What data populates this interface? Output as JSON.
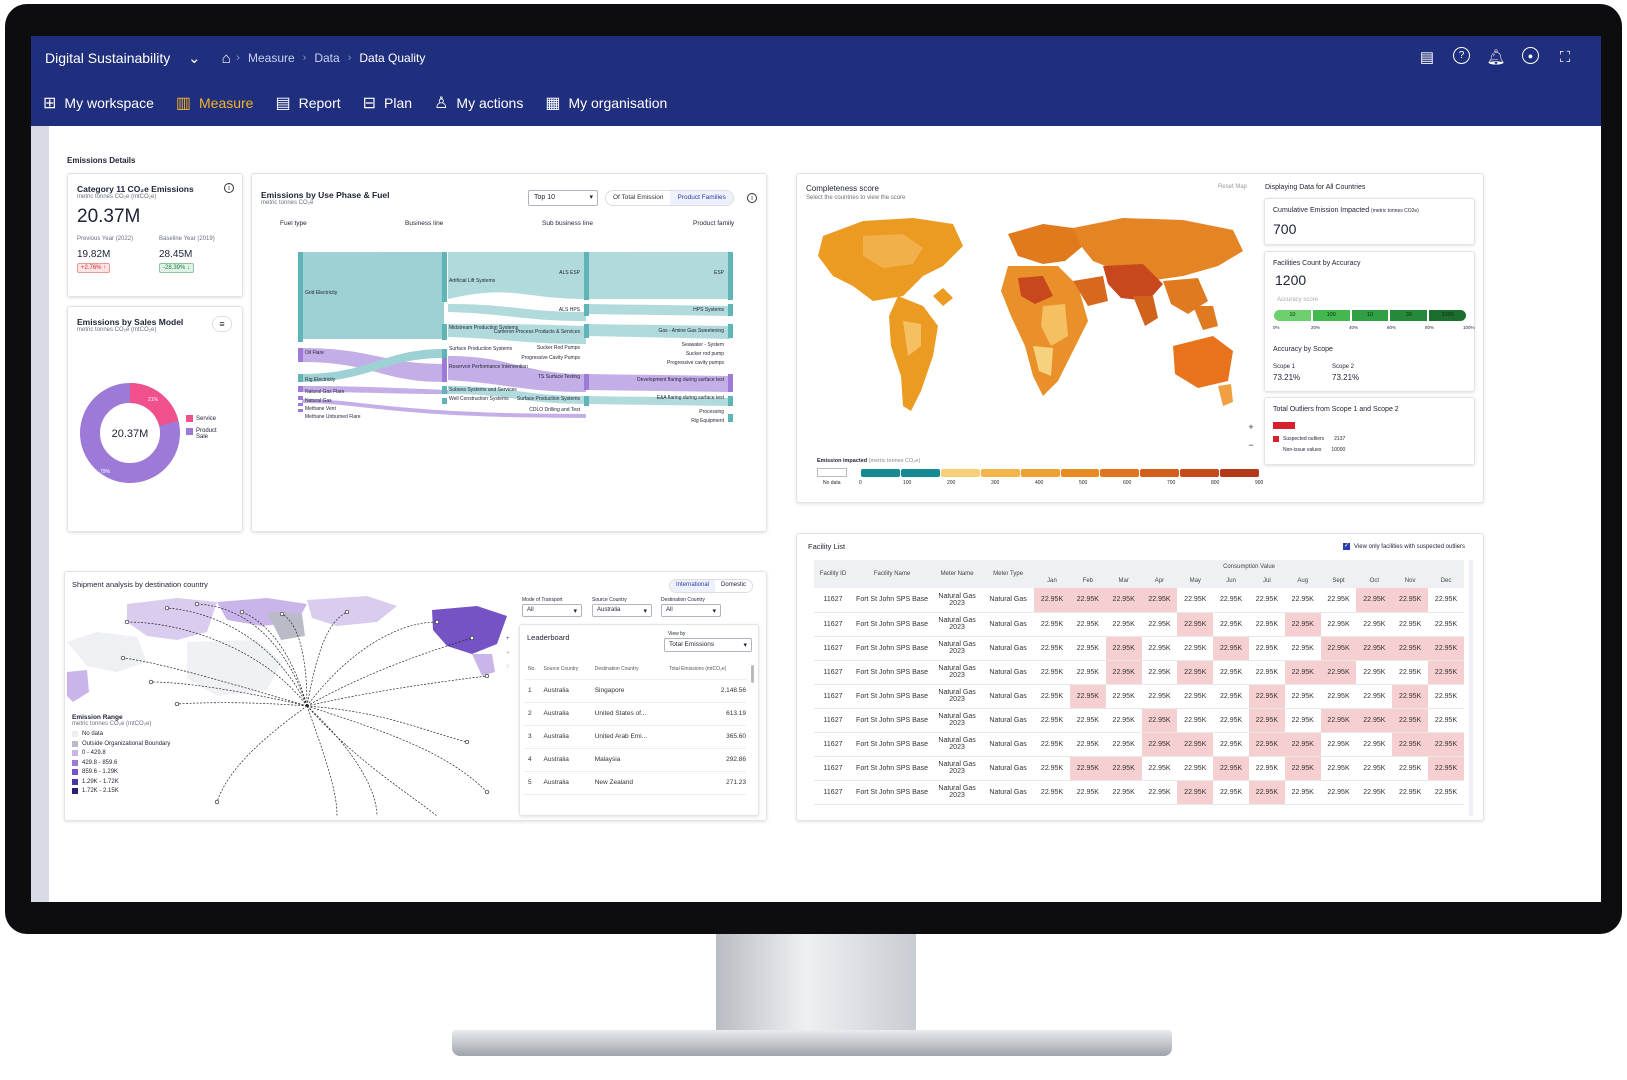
{
  "header": {
    "brand": "Digital Sustainability",
    "breadcrumbs": [
      "Measure",
      "Data",
      "Data Quality"
    ],
    "nav": [
      {
        "label": "My workspace",
        "icon": "grid-icon"
      },
      {
        "label": "Measure",
        "icon": "bar-chart-icon",
        "active": true
      },
      {
        "label": "Report",
        "icon": "document-icon"
      },
      {
        "label": "Plan",
        "icon": "plan-icon"
      },
      {
        "label": "My actions",
        "icon": "user-icon"
      },
      {
        "label": "My organisation",
        "icon": "building-icon"
      }
    ]
  },
  "section_title": "Emissions Details",
  "category11": {
    "title": "Category 11 CO₂e Emissions",
    "unit": "metric tonnes CO₂e (mtCO₂e)",
    "value": "20.37M",
    "prev_label": "Previous Year (2022)",
    "prev_value": "19.82M",
    "prev_change": "+2.76% ↑",
    "base_label": "Baseline Year (2019)",
    "base_value": "28.45M",
    "base_change": "-28.39% ↓"
  },
  "sales_model": {
    "title": "Emissions by Sales Model",
    "unit": "metric tonnes CO₂e (mtCO₂e)",
    "center": "20.37M",
    "service_pct": "21%",
    "product_pct": "79%",
    "legend": [
      "Service",
      "Product Sale"
    ],
    "colors": {
      "service": "#f0508c",
      "product": "#9d7ad8"
    }
  },
  "sankey": {
    "title": "Emissions by Use Phase & Fuel",
    "unit": "metric tonnes CO₂e",
    "select": "Top 10",
    "toggle": [
      "Of Total Emission",
      "Product Families"
    ],
    "columns": [
      "Fuel type",
      "Business line",
      "Sub business line",
      "Product family"
    ],
    "fuel": [
      "Grid Electricity",
      "Oil Flare",
      "Rig Electricity",
      "Natural Gas Flare",
      "Natural Gas",
      "Methane Vent",
      "Methane Unburned Flare"
    ],
    "business": [
      "Artificial Lift Systems",
      "Midstream Production Systems",
      "Surface Production Systems",
      "Reservoir Performance Intervention",
      "Subsea Systems and Services",
      "Well Construction Systems"
    ],
    "subbusiness": [
      "ALS ESP",
      "ALS HPS",
      "Cameron Process Products & Services",
      "Sucker Rod Pumps",
      "Progressive Cavity Pumps",
      "TS Surface Testing",
      "Surface Production Systems",
      "CDLO Drilling and Test"
    ],
    "product": [
      "ESP",
      "HPS Systems",
      "Gas - Amine Gas Sweetening",
      "Seawater - System",
      "Sucker rod pump",
      "Progressive cavity pumps",
      "Development flaring during surface test",
      "E&A flaring during surface test",
      "Processing",
      "Rig Equipment"
    ]
  },
  "map": {
    "title": "Completeness score",
    "subtitle": "Select the countries to view the score",
    "reset": "Reset Map",
    "legend_title": "Emission impacted",
    "legend_unit": "(metric tonnes CO₂e)",
    "no_data": "No data",
    "ticks": [
      "0",
      "100",
      "200",
      "300",
      "400",
      "500",
      "600",
      "700",
      "800",
      "900"
    ]
  },
  "right_panel": {
    "title": "Displaying Data for All Countries",
    "cumulative_label": "Cumulative Emission Impacted",
    "cumulative_unit": "(metric tonnes CO2e)",
    "cumulative_value": "700",
    "facilities_label": "Facilities Count by Accuracy",
    "facilities_value": "1200",
    "accuracy_label": "Accuracy score",
    "bars": [
      "10",
      "100",
      "10",
      "30",
      "1000"
    ],
    "bar_ticks": [
      "0%",
      "20%",
      "40%",
      "60%",
      "80%",
      "100%"
    ],
    "scope_title": "Accuracy by Scope",
    "scope1_label": "Scope 1",
    "scope1_value": "73.21%",
    "scope2_label": "Scope 2",
    "scope2_value": "73.21%",
    "outliers_title": "Total Outliers from Scope 1 and Scope 2",
    "suspected_label": "Suspected outliers",
    "suspected_value": "2137",
    "nonissue_label": "Non-issue values",
    "nonissue_value": "10000"
  },
  "shipment": {
    "title": "Shipment analysis by destination country",
    "toggle": [
      "International",
      "Domestic"
    ],
    "filters": [
      {
        "label": "Mode of Transport",
        "value": "All"
      },
      {
        "label": "Source Country",
        "value": "Australia"
      },
      {
        "label": "Destination Country",
        "value": "All"
      }
    ],
    "range_title": "Emission Range",
    "range_unit": "metric tonnes CO₂e (mtCO₂e)",
    "ranges": [
      "No data",
      "Outside Organizational Boundary",
      "0 - 429.8",
      "429.8 - 859.6",
      "859.6 - 1.29K",
      "1.29K - 1.72K",
      "1.72K - 2.15K"
    ],
    "range_colors": [
      "#eceef2",
      "#b9bcc6",
      "#c9b5ea",
      "#9d7ad8",
      "#7553c4",
      "#4f35a3",
      "#2d1f74"
    ],
    "leaderboard_title": "Leaderboard",
    "view_by_label": "View by",
    "view_by": "Total Emissions",
    "lb_headers": [
      "No.",
      "Source Country",
      "Destination Country",
      "Total Emissions (mtCO₂e)"
    ],
    "lb_rows": [
      [
        "1",
        "Australia",
        "Singapore",
        "2,148.56"
      ],
      [
        "2",
        "Australia",
        "United States of...",
        "613.19"
      ],
      [
        "3",
        "Australia",
        "United Arab Emi...",
        "365.60"
      ],
      [
        "4",
        "Australia",
        "Malaysia",
        "292.86"
      ],
      [
        "5",
        "Australia",
        "New Zealand",
        "271.23"
      ]
    ]
  },
  "facility": {
    "title": "Facility List",
    "checkbox_label": "View only facilities with suspected outliers",
    "headers": [
      "Facility ID",
      "Facility Name",
      "Meter Name",
      "Meter Type"
    ],
    "consumption_label": "Consumption Value",
    "months": [
      "Jan",
      "Feb",
      "Mar",
      "Apr",
      "May",
      "Jun",
      "Jul",
      "Aug",
      "Sept",
      "Oct",
      "Nov",
      "Dec"
    ],
    "row": {
      "id": "11627",
      "name": "Fort St John SPS Base",
      "meter": "Natural Gas 2023",
      "type": "Natural Gas",
      "value": "22.95K"
    },
    "highlights": [
      [
        0,
        1,
        2,
        3,
        9,
        10
      ],
      [
        4,
        7
      ],
      [
        2,
        5,
        8,
        9,
        10,
        11
      ],
      [
        2,
        4,
        7,
        8,
        11
      ],
      [
        1,
        6,
        10
      ],
      [
        3,
        6,
        8,
        9,
        10
      ],
      [
        3,
        4,
        6,
        7,
        10,
        11
      ],
      [
        1,
        2,
        5,
        7,
        11
      ],
      [
        4,
        6
      ]
    ]
  }
}
